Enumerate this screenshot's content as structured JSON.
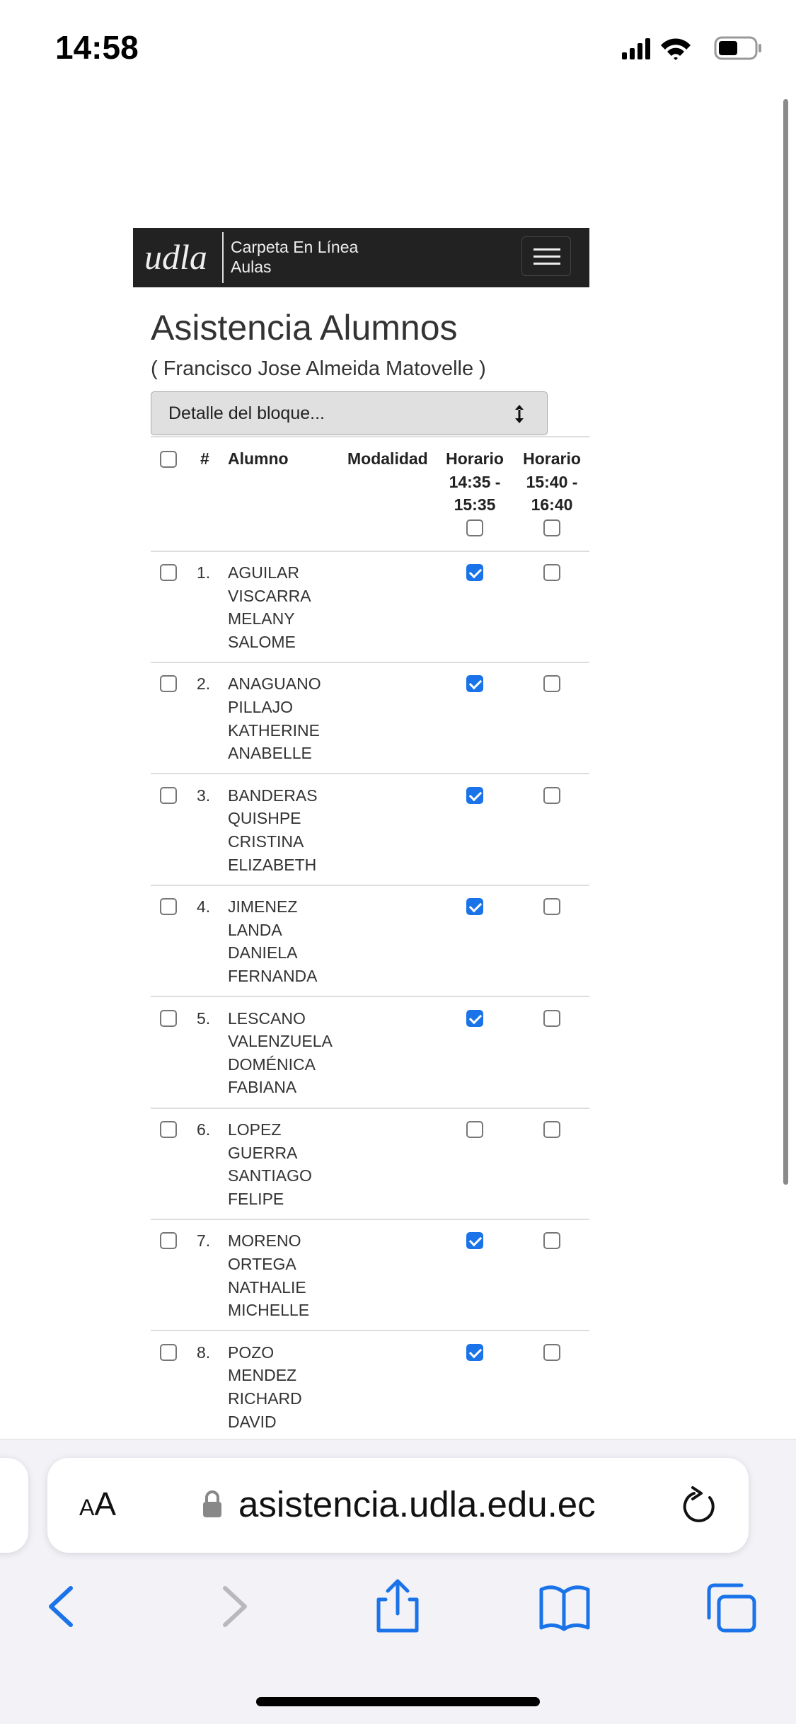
{
  "status_bar": {
    "time": "14:58"
  },
  "navbar": {
    "logo": "udla",
    "app_name": "Carpeta En Línea",
    "app_section": "Aulas"
  },
  "page": {
    "title": "Asistencia Alumnos",
    "subtitle": "( Francisco Jose Almeida Matovelle )",
    "block_select": "Detalle del bloque...",
    "table": {
      "headers": [
        "#",
        "Alumno",
        "Modalidad",
        "Horario 14:35 - 15:35",
        "Horario 15:40 - 16:40"
      ],
      "header_checks": [
        false,
        false,
        false
      ],
      "rows": [
        {
          "number": "1.",
          "name": "AGUILAR VISCARRA MELANY SALOME",
          "selected": false,
          "slots": [
            true,
            false
          ]
        },
        {
          "number": "2.",
          "name": "ANAGUANO PILLAJO KATHERINE ANABELLE",
          "selected": false,
          "slots": [
            true,
            false
          ]
        },
        {
          "number": "3.",
          "name": "BANDERAS QUISHPE CRISTINA ELIZABETH",
          "selected": false,
          "slots": [
            true,
            false
          ]
        },
        {
          "number": "4.",
          "name": "JIMENEZ LANDA DANIELA FERNANDA",
          "selected": false,
          "slots": [
            true,
            false
          ]
        },
        {
          "number": "5.",
          "name": "LESCANO VALENZUELA DOMÉNICA FABIANA",
          "selected": false,
          "slots": [
            true,
            false
          ]
        },
        {
          "number": "6.",
          "name": "LOPEZ GUERRA SANTIAGO FELIPE",
          "selected": false,
          "slots": [
            false,
            false
          ]
        },
        {
          "number": "7.",
          "name": "MORENO ORTEGA NATHALIE MICHELLE",
          "selected": false,
          "slots": [
            true,
            false
          ]
        },
        {
          "number": "8.",
          "name": "POZO MENDEZ RICHARD DAVID",
          "selected": false,
          "slots": [
            true,
            false
          ]
        }
      ]
    }
  },
  "browser": {
    "text_size_button": "AA",
    "url": "asistencia.udla.edu.ec"
  }
}
